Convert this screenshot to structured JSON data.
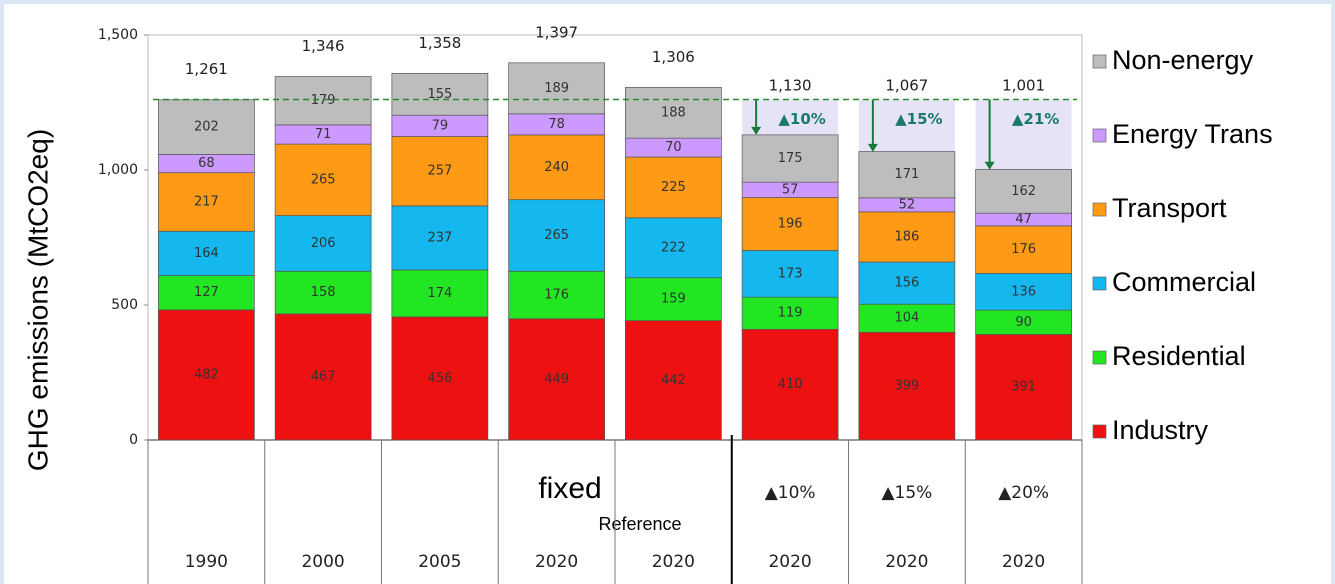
{
  "chart_data": {
    "type": "stacked_bar",
    "y_label": "GHG emissions (MtCO2eq)",
    "categories": [
      "1990",
      "2000",
      "2005",
      "2020",
      "2020",
      "2020",
      "2020",
      "2020"
    ],
    "series": [
      {
        "name": "Industry",
        "color": "#ee1111",
        "values": [
          482,
          467,
          456,
          449,
          442,
          410,
          399,
          391
        ]
      },
      {
        "name": "Residential",
        "color": "#22e622",
        "values": [
          127,
          158,
          174,
          176,
          159,
          119,
          104,
          90
        ]
      },
      {
        "name": "Commercial",
        "color": "#14b8ee",
        "values": [
          164,
          206,
          237,
          265,
          222,
          173,
          156,
          136
        ]
      },
      {
        "name": "Transport",
        "color": "#ff9a16",
        "values": [
          217,
          265,
          257,
          240,
          225,
          196,
          186,
          176
        ]
      },
      {
        "name": "Energy Trans",
        "color": "#cc99ff",
        "values": [
          68,
          71,
          79,
          78,
          70,
          57,
          52,
          47
        ]
      },
      {
        "name": "Non-energy",
        "color": "#bdbdbd",
        "values": [
          202,
          179,
          155,
          189,
          188,
          175,
          171,
          162
        ]
      }
    ],
    "totals": [
      1261,
      1346,
      1358,
      1397,
      1306,
      1130,
      1067,
      1001
    ],
    "total_labels": [
      "1,261",
      "1,346",
      "1,358",
      "1,397",
      "1,306",
      "1,130",
      "1,067",
      "1,001"
    ],
    "reductions": [
      "▲10%",
      "▲15%",
      "▲21%"
    ],
    "scenario_labels": [
      "▲10%",
      "▲15%",
      "▲20%"
    ],
    "fixed_label": "fixed",
    "reference_label": "Reference",
    "ylim": [
      0,
      1500
    ],
    "yticks": [
      0,
      500,
      {
        "value": 1000,
        "label": "1,000"
      },
      {
        "value": 1500,
        "label": "1,500"
      }
    ]
  }
}
